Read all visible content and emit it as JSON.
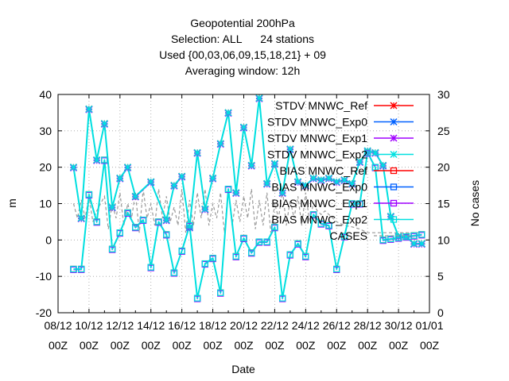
{
  "chart_data": {
    "type": "line",
    "title_lines": [
      "Geopotential 200hPa",
      "Selection: ALL      24 stations",
      "Used {00,03,06,09,15,18,21} + 09",
      "Averaging window: 12h"
    ],
    "xlabel": "Date",
    "ylabel": "m",
    "y2label": "No cases",
    "ylim": [
      -20,
      40
    ],
    "y2lim": [
      0,
      30
    ],
    "xlim": [
      0,
      48
    ],
    "x_unit": "days from 08/12 00Z",
    "ytick_labels": [
      "-20",
      "-10",
      "0",
      "10",
      "20",
      "30",
      "40"
    ],
    "y2tick_labels": [
      "0",
      "5",
      "10",
      "15",
      "20",
      "25",
      "30"
    ],
    "xtick_labels": [
      "08/12",
      "10/12",
      "12/12",
      "14/12",
      "16/12",
      "18/12",
      "20/12",
      "22/12",
      "24/12",
      "26/12",
      "28/12",
      "30/12",
      "01/01"
    ],
    "xtick_sublabel": "00Z",
    "legend_position": "top-right (inside plot)",
    "series": [
      {
        "name": "STDV MNWC_Ref",
        "color": "#ff0000",
        "marker": "x"
      },
      {
        "name": "STDV MNWC_Exp0",
        "color": "#0060ff",
        "marker": "x"
      },
      {
        "name": "STDV MNWC_Exp1",
        "color": "#a000ff",
        "marker": "x"
      },
      {
        "name": "STDV MNWC_Exp2",
        "color": "#00e0e0",
        "marker": "x"
      },
      {
        "name": "BIAS MNWC_Ref",
        "color": "#ff0000",
        "marker": "square"
      },
      {
        "name": "BIAS MNWC_Exp0",
        "color": "#0060ff",
        "marker": "square"
      },
      {
        "name": "BIAS MNWC_Exp1",
        "color": "#a000ff",
        "marker": "square"
      },
      {
        "name": "BIAS MNWC_Exp2",
        "color": "#00e0e0",
        "marker": "square"
      },
      {
        "name": "CASES",
        "color": "#999999",
        "marker": "none",
        "dashed": true
      }
    ],
    "stdv_x": [
      2,
      3,
      4,
      5,
      6,
      7,
      8,
      9,
      10,
      12,
      14,
      15,
      16,
      17,
      18,
      19,
      20,
      21,
      22,
      23,
      24,
      25,
      26,
      27,
      28,
      29,
      30,
      31,
      32,
      33,
      34,
      35,
      36,
      37,
      38,
      39,
      40,
      41,
      42,
      43,
      44,
      45,
      46,
      47
    ],
    "stdv_y": [
      20,
      6,
      36,
      22,
      32,
      9,
      17,
      20,
      12,
      16,
      5.5,
      15,
      17.5,
      3.5,
      24,
      8.5,
      17,
      26.5,
      35,
      13,
      31,
      20.5,
      39,
      15.5,
      21,
      13,
      25,
      16,
      15,
      17,
      16.5,
      17,
      16,
      16.5,
      15.5,
      21.5,
      24.5,
      24,
      20.5,
      6.5,
      1,
      1,
      -1,
      -1
    ],
    "bias_x": [
      2,
      3,
      4,
      5,
      6,
      7,
      8,
      9,
      10,
      11,
      12,
      13,
      14,
      15,
      16,
      17,
      18,
      19,
      20,
      21,
      22,
      23,
      24,
      25,
      26,
      27,
      28,
      29,
      30,
      31,
      32,
      33,
      34,
      35,
      36,
      37,
      38,
      39,
      40,
      41,
      42,
      43,
      44,
      45,
      46,
      47
    ],
    "bias_y": [
      -8,
      -8,
      12.5,
      5,
      22,
      -2.5,
      2,
      7.5,
      3.5,
      5.5,
      -7.5,
      5,
      1.5,
      -9,
      -3,
      4,
      -16,
      -6.5,
      -5,
      -14.5,
      14,
      -4.5,
      0.5,
      -3.5,
      -0.5,
      -0.5,
      3.5,
      -16,
      -4,
      -1,
      -4.5,
      7,
      4.5,
      4,
      -8,
      1,
      10,
      10,
      24,
      20,
      0,
      0.3,
      0.6,
      0.9,
      1.2,
      1.5
    ],
    "cases_x": [
      2,
      2.5,
      3,
      3.5,
      4,
      4.5,
      5,
      5.5,
      6,
      6.5,
      7,
      7.5,
      8,
      8.5,
      9,
      9.5,
      10,
      10.5,
      11,
      11.5,
      12,
      12.5,
      13,
      13.5,
      14,
      14.5,
      15,
      15.5,
      16,
      16.5,
      17,
      17.5,
      18,
      18.5,
      19,
      19.5,
      20,
      20.5,
      21,
      21.5,
      22,
      22.5,
      23,
      23.5,
      24,
      24.5,
      25,
      25.5,
      26,
      26.5,
      27,
      27.5,
      28,
      28.5,
      29,
      29.5,
      30,
      30.5,
      31,
      31.5,
      32,
      32.5,
      33,
      33.5,
      34,
      34.5,
      35,
      35.5,
      36,
      37,
      38,
      39,
      40,
      41,
      42,
      43,
      44,
      45,
      46,
      47
    ],
    "cases_y": [
      15,
      13,
      15.5,
      13,
      16,
      12.5,
      14,
      15,
      16,
      11.5,
      15,
      13,
      16.5,
      12,
      15,
      13,
      16.5,
      11,
      17,
      13,
      15,
      12,
      17,
      13,
      16,
      12.5,
      14.5,
      12,
      17,
      11,
      15.5,
      12,
      16.5,
      13,
      17,
      12,
      15,
      13,
      16.5,
      11,
      17,
      12,
      15.5,
      12.5,
      16,
      13,
      17,
      11.5,
      15.5,
      12,
      16.5,
      11,
      15,
      13,
      17,
      12,
      15.5,
      13,
      16,
      12,
      16.5,
      12.5,
      15,
      14,
      13.5,
      14,
      13.5,
      13,
      12.5,
      12,
      11.8,
      11.5,
      11,
      11,
      11,
      11,
      11,
      11,
      11,
      11
    ]
  }
}
